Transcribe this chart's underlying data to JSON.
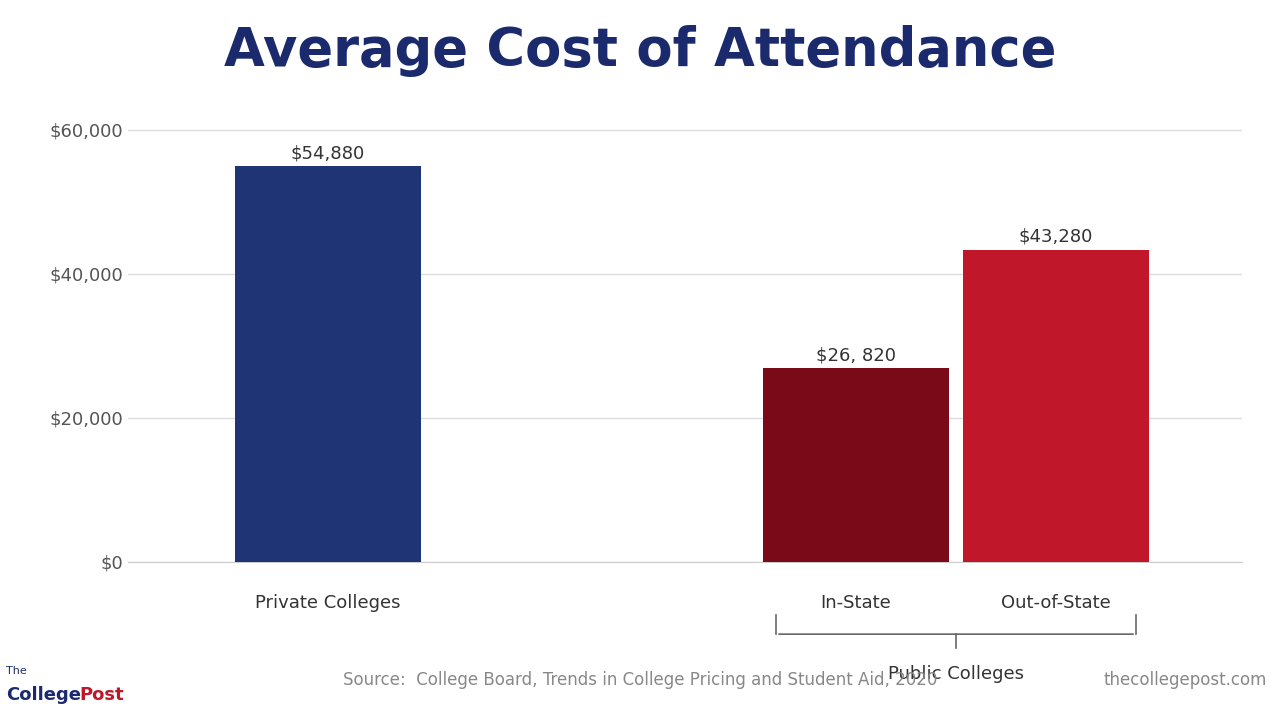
{
  "title": "Average Cost of Attendance",
  "title_color": "#1a2a6c",
  "title_fontsize": 38,
  "title_fontweight": "bold",
  "categories": [
    "Private Colleges",
    "In-State",
    "Out-of-State"
  ],
  "values": [
    54880,
    26820,
    43280
  ],
  "bar_colors": [
    "#1f3474",
    "#7a0a18",
    "#c0182a"
  ],
  "bar_labels": [
    "$54,880",
    "$26, 820",
    "$43,280"
  ],
  "bar_label_fontsize": 13,
  "bar_label_color": "#333333",
  "ylim": [
    0,
    65000
  ],
  "yticks": [
    0,
    20000,
    40000,
    60000
  ],
  "ytick_labels": [
    "$0",
    "$20,000",
    "$40,000",
    "$60,000"
  ],
  "grid_color": "#dddddd",
  "background_color": "#ffffff",
  "footer_separator_color": "#1f3474",
  "footer_text": "Source:  College Board, Trends in College Pricing and Student Aid, 2020",
  "footer_right_text": "thecollegepost.com",
  "footer_text_color": "#888888",
  "footer_fontsize": 12,
  "group_label": "Public Colleges",
  "group_label_fontsize": 13,
  "x_label_fontsize": 13,
  "tick_label_color": "#555555",
  "x_positions": [
    1.0,
    2.85,
    3.55
  ],
  "bar_width": 0.65,
  "xlim": [
    0.3,
    4.2
  ]
}
